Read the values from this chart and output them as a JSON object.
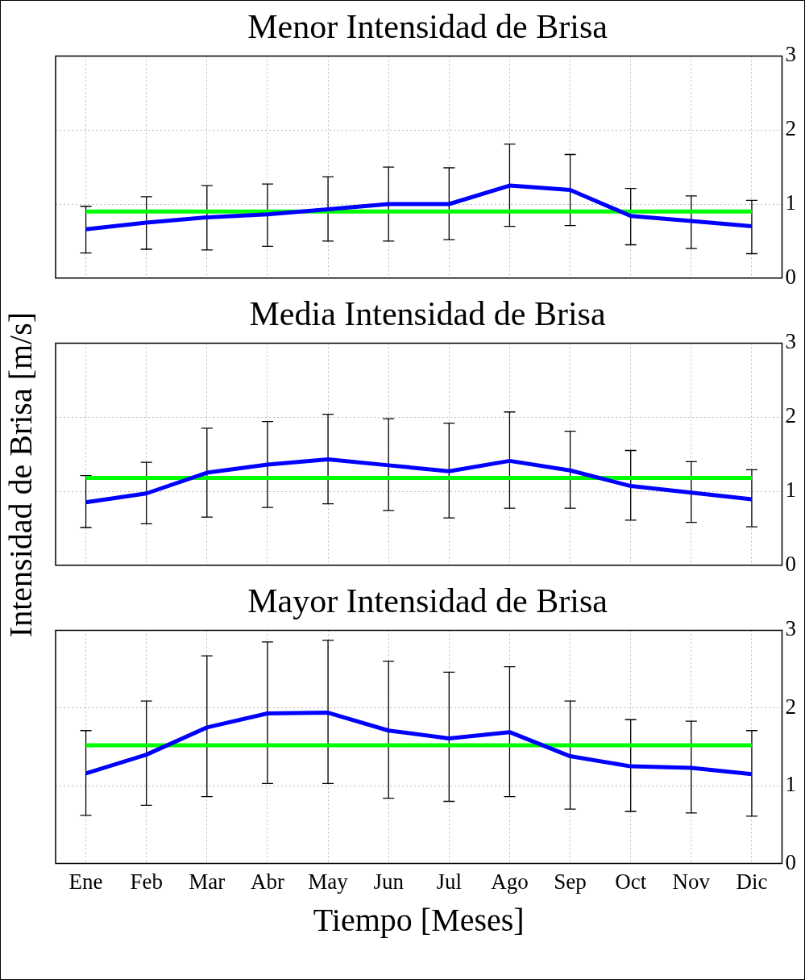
{
  "chart_data": [
    {
      "type": "line",
      "title": "Menor Intensidad de Brisa",
      "categories": [
        null,
        null,
        null,
        null,
        null,
        null,
        null,
        null,
        null,
        null,
        null,
        null
      ],
      "series": [
        {
          "color": "#0000ff",
          "values": [
            0.66,
            0.75,
            0.82,
            0.86,
            0.93,
            1.0,
            1.0,
            1.25,
            1.19,
            0.84,
            0.77,
            0.7
          ],
          "errors": [
            [
              0.34,
              0.97
            ],
            [
              0.39,
              1.1
            ],
            [
              0.38,
              1.25
            ],
            [
              0.43,
              1.27
            ],
            [
              0.5,
              1.37
            ],
            [
              0.5,
              1.5
            ],
            [
              0.52,
              1.49
            ],
            [
              0.7,
              1.81
            ],
            [
              0.71,
              1.67
            ],
            [
              0.45,
              1.21
            ],
            [
              0.4,
              1.11
            ],
            [
              0.33,
              1.05
            ]
          ]
        }
      ],
      "ref_lines": [
        {
          "axis": "y",
          "value": 0.9,
          "color": "#00ff00"
        }
      ],
      "ylim": [
        0,
        3
      ],
      "yticks": [
        0,
        1,
        2,
        3
      ],
      "grid": true,
      "tick_labels": "y"
    },
    {
      "type": "line",
      "title": "Media Intensidad de Brisa",
      "ylabel": "Intensidad de Brisa [m/s]",
      "categories": [
        null,
        null,
        null,
        null,
        null,
        null,
        null,
        null,
        null,
        null,
        null,
        null
      ],
      "series": [
        {
          "color": "#0000ff",
          "values": [
            0.85,
            0.97,
            1.25,
            1.36,
            1.43,
            1.35,
            1.27,
            1.41,
            1.28,
            1.07,
            0.98,
            0.89
          ],
          "errors": [
            [
              0.51,
              1.21
            ],
            [
              0.56,
              1.39
            ],
            [
              0.65,
              1.85
            ],
            [
              0.78,
              1.94
            ],
            [
              0.83,
              2.04
            ],
            [
              0.74,
              1.98
            ],
            [
              0.64,
              1.92
            ],
            [
              0.77,
              2.07
            ],
            [
              0.77,
              1.81
            ],
            [
              0.61,
              1.55
            ],
            [
              0.58,
              1.4
            ],
            [
              0.52,
              1.29
            ]
          ]
        }
      ],
      "ref_lines": [
        {
          "axis": "y",
          "value": 1.18,
          "color": "#00ff00"
        }
      ],
      "ylim": [
        0,
        3
      ],
      "yticks": [
        0,
        1,
        2,
        3
      ],
      "grid": true,
      "tick_labels": "y"
    },
    {
      "type": "line",
      "title": "Mayor Intensidad de Brisa",
      "xlabel": "Tiempo [Meses]",
      "categories": [
        "Ene",
        "Feb",
        "Mar",
        "Abr",
        "May",
        "Jun",
        "Jul",
        "Ago",
        "Sep",
        "Oct",
        "Nov",
        "Dic"
      ],
      "series": [
        {
          "color": "#0000ff",
          "values": [
            1.16,
            1.4,
            1.75,
            1.93,
            1.94,
            1.71,
            1.61,
            1.69,
            1.38,
            1.25,
            1.23,
            1.15
          ],
          "errors": [
            [
              0.62,
              1.71
            ],
            [
              0.75,
              2.09
            ],
            [
              0.86,
              2.67
            ],
            [
              1.03,
              2.85
            ],
            [
              1.03,
              2.87
            ],
            [
              0.84,
              2.6
            ],
            [
              0.8,
              2.46
            ],
            [
              0.86,
              2.53
            ],
            [
              0.7,
              2.09
            ],
            [
              0.67,
              1.85
            ],
            [
              0.65,
              1.83
            ],
            [
              0.61,
              1.71
            ]
          ]
        }
      ],
      "ref_lines": [
        {
          "axis": "y",
          "value": 1.52,
          "color": "#00ff00"
        }
      ],
      "ylim": [
        0,
        3
      ],
      "yticks": [
        0,
        1,
        2,
        3
      ],
      "grid": true
    }
  ]
}
